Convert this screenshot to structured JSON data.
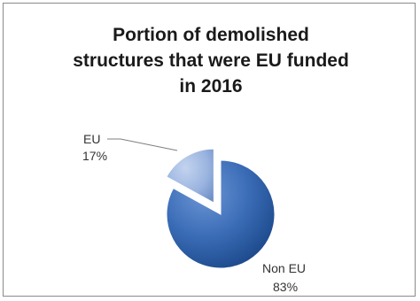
{
  "chart_data": {
    "type": "pie",
    "title_lines": [
      "Portion of demolished",
      "structures that were EU funded",
      "in 2016"
    ],
    "slices": [
      {
        "label": "EU",
        "value": 17,
        "value_text": "17%",
        "color": "#8faadc",
        "exploded": true
      },
      {
        "label": "Non EU",
        "value": 83,
        "value_text": "83%",
        "color": "#2e60a8",
        "exploded": false
      }
    ],
    "legend": "none",
    "style": "3d-shaded"
  }
}
